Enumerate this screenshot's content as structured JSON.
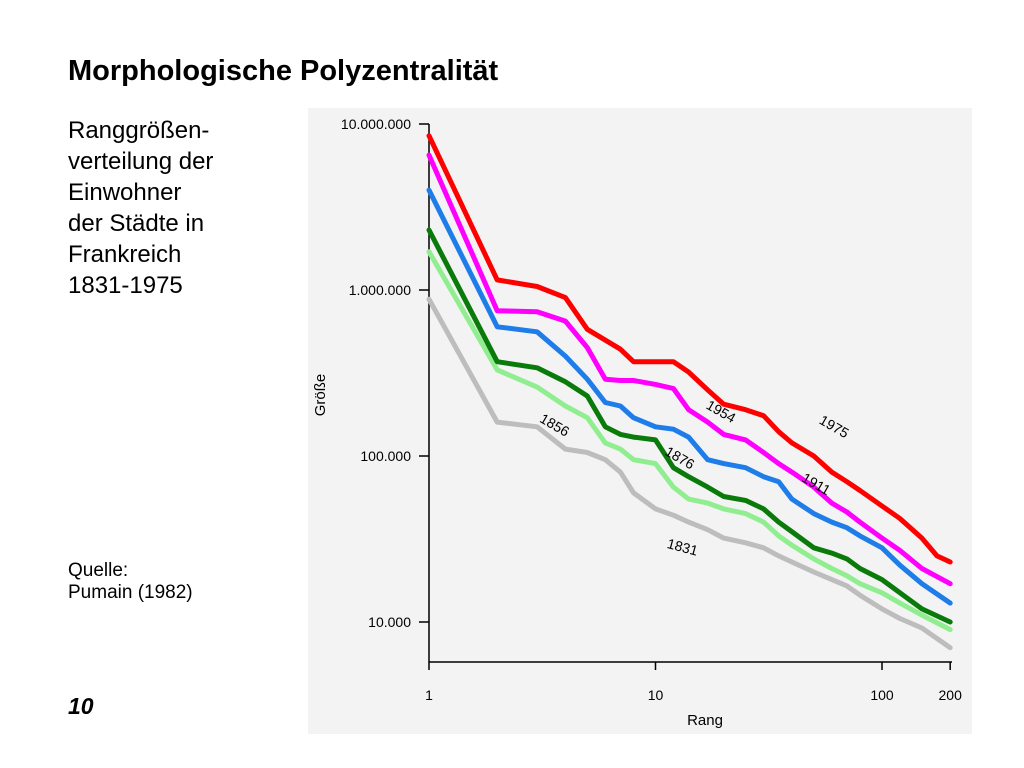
{
  "slide": {
    "title": "Morphologische Polyzentralität",
    "description_lines": [
      "Ranggrößen-",
      "verteilung der",
      "Einwohner",
      "der Städte in",
      "Frankreich",
      "1831-1975"
    ],
    "source_lines": [
      "Quelle:",
      "Pumain (1982)"
    ],
    "slide_number": "10"
  },
  "chart_data": {
    "type": "line",
    "title": "",
    "xlabel": "Rang",
    "ylabel": "Größe",
    "xscale": "log",
    "yscale": "log",
    "xlim": [
      1,
      200
    ],
    "ylim": [
      5000,
      10000000
    ],
    "xticks": [
      {
        "value": 1,
        "label": "1"
      },
      {
        "value": 10,
        "label": "10"
      },
      {
        "value": 100,
        "label": "100"
      },
      {
        "value": 200,
        "label": "200"
      }
    ],
    "yticks": [
      {
        "value": 10000,
        "label": "10.000"
      },
      {
        "value": 100000,
        "label": "100.000"
      },
      {
        "value": 1000000,
        "label": "1.000.000"
      },
      {
        "value": 10000000,
        "label": "10.000.000"
      }
    ],
    "grid": false,
    "legend": "inline labels on lines",
    "series": [
      {
        "name": "1975",
        "color": "#ff0000",
        "label_at": {
          "x": 60,
          "y": 142000
        },
        "label_rotation": 30,
        "points": [
          [
            1,
            8500000
          ],
          [
            2,
            1150000
          ],
          [
            3,
            1050000
          ],
          [
            4,
            900000
          ],
          [
            5,
            580000
          ],
          [
            7,
            440000
          ],
          [
            8,
            370000
          ],
          [
            10,
            370000
          ],
          [
            12,
            370000
          ],
          [
            14,
            320000
          ],
          [
            17,
            250000
          ],
          [
            20,
            205000
          ],
          [
            25,
            190000
          ],
          [
            30,
            175000
          ],
          [
            35,
            140000
          ],
          [
            40,
            120000
          ],
          [
            50,
            100000
          ],
          [
            60,
            80000
          ],
          [
            70,
            70000
          ],
          [
            80,
            62000
          ],
          [
            100,
            50000
          ],
          [
            120,
            42000
          ],
          [
            150,
            32000
          ],
          [
            175,
            25000
          ],
          [
            200,
            23000
          ]
        ]
      },
      {
        "name": "1954",
        "color": "#ff00ff",
        "label_at": {
          "x": 19,
          "y": 175000
        },
        "label_rotation": 30,
        "points": [
          [
            1,
            6500000
          ],
          [
            2,
            750000
          ],
          [
            3,
            740000
          ],
          [
            4,
            650000
          ],
          [
            5,
            450000
          ],
          [
            6,
            290000
          ],
          [
            7,
            285000
          ],
          [
            8,
            285000
          ],
          [
            10,
            270000
          ],
          [
            12,
            255000
          ],
          [
            14,
            190000
          ],
          [
            17,
            160000
          ],
          [
            20,
            135000
          ],
          [
            25,
            125000
          ],
          [
            30,
            105000
          ],
          [
            35,
            90000
          ],
          [
            40,
            80000
          ],
          [
            50,
            65000
          ],
          [
            60,
            52000
          ],
          [
            70,
            46000
          ],
          [
            80,
            40000
          ],
          [
            100,
            32000
          ],
          [
            120,
            27000
          ],
          [
            150,
            21000
          ],
          [
            200,
            17000
          ]
        ]
      },
      {
        "name": "1911",
        "color": "#1e7de8",
        "label_at": {
          "x": 50,
          "y": 64000
        },
        "label_rotation": 30,
        "points": [
          [
            1,
            4000000
          ],
          [
            2,
            600000
          ],
          [
            3,
            560000
          ],
          [
            4,
            400000
          ],
          [
            5,
            290000
          ],
          [
            6,
            210000
          ],
          [
            7,
            200000
          ],
          [
            8,
            170000
          ],
          [
            10,
            150000
          ],
          [
            12,
            145000
          ],
          [
            14,
            130000
          ],
          [
            17,
            95000
          ],
          [
            20,
            90000
          ],
          [
            25,
            85000
          ],
          [
            30,
            75000
          ],
          [
            35,
            70000
          ],
          [
            40,
            55000
          ],
          [
            50,
            45000
          ],
          [
            60,
            40000
          ],
          [
            70,
            37000
          ],
          [
            80,
            33000
          ],
          [
            100,
            28000
          ],
          [
            120,
            22000
          ],
          [
            150,
            17000
          ],
          [
            200,
            13000
          ]
        ]
      },
      {
        "name": "1876",
        "color": "#0a7a0a",
        "label_at": {
          "x": 12.5,
          "y": 92000
        },
        "label_rotation": 30,
        "points": [
          [
            1,
            2300000
          ],
          [
            2,
            370000
          ],
          [
            3,
            340000
          ],
          [
            4,
            280000
          ],
          [
            5,
            230000
          ],
          [
            6,
            150000
          ],
          [
            7,
            135000
          ],
          [
            8,
            130000
          ],
          [
            10,
            125000
          ],
          [
            12,
            85000
          ],
          [
            14,
            75000
          ],
          [
            17,
            65000
          ],
          [
            20,
            57000
          ],
          [
            25,
            54000
          ],
          [
            30,
            48000
          ],
          [
            35,
            40000
          ],
          [
            40,
            35000
          ],
          [
            50,
            28000
          ],
          [
            60,
            26000
          ],
          [
            70,
            24000
          ],
          [
            80,
            21000
          ],
          [
            100,
            18000
          ],
          [
            120,
            15000
          ],
          [
            150,
            12000
          ],
          [
            200,
            10000
          ]
        ]
      },
      {
        "name": "1856",
        "color": "#90ee90",
        "label_at": {
          "x": 3.5,
          "y": 145000
        },
        "label_rotation": 30,
        "points": [
          [
            1,
            1700000
          ],
          [
            2,
            330000
          ],
          [
            3,
            260000
          ],
          [
            4,
            200000
          ],
          [
            5,
            170000
          ],
          [
            6,
            120000
          ],
          [
            7,
            110000
          ],
          [
            8,
            95000
          ],
          [
            10,
            90000
          ],
          [
            12,
            65000
          ],
          [
            14,
            55000
          ],
          [
            17,
            52000
          ],
          [
            20,
            48000
          ],
          [
            25,
            45000
          ],
          [
            30,
            40000
          ],
          [
            35,
            33000
          ],
          [
            40,
            29000
          ],
          [
            50,
            24000
          ],
          [
            60,
            21000
          ],
          [
            70,
            19000
          ],
          [
            80,
            17000
          ],
          [
            100,
            15000
          ],
          [
            120,
            13000
          ],
          [
            150,
            11000
          ],
          [
            200,
            9000
          ]
        ]
      },
      {
        "name": "1831",
        "color": "#bdbdbd",
        "label_at": {
          "x": 13,
          "y": 26500
        },
        "label_rotation": 15,
        "points": [
          [
            1,
            880000
          ],
          [
            2,
            160000
          ],
          [
            3,
            150000
          ],
          [
            4,
            110000
          ],
          [
            5,
            105000
          ],
          [
            6,
            95000
          ],
          [
            7,
            80000
          ],
          [
            8,
            60000
          ],
          [
            10,
            48000
          ],
          [
            12,
            44000
          ],
          [
            14,
            40000
          ],
          [
            17,
            36000
          ],
          [
            20,
            32000
          ],
          [
            25,
            30000
          ],
          [
            30,
            28000
          ],
          [
            35,
            25000
          ],
          [
            40,
            23000
          ],
          [
            50,
            20000
          ],
          [
            60,
            18000
          ],
          [
            70,
            16500
          ],
          [
            80,
            14500
          ],
          [
            100,
            12000
          ],
          [
            120,
            10500
          ],
          [
            150,
            9200
          ],
          [
            200,
            7000
          ]
        ]
      }
    ]
  }
}
